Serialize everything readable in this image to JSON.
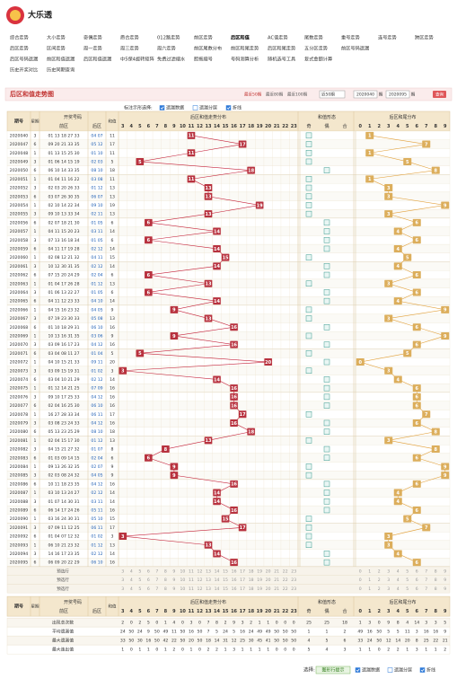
{
  "header": {
    "title": "大乐透"
  },
  "nav": [
    [
      "综合走势",
      "大小走势",
      "奇偶走势",
      "质合走势",
      "012路走势",
      "前区走势",
      "后区和值",
      "AC值走势",
      "尾数走势",
      "重号走势",
      "连号走势",
      "跨区走势"
    ],
    [
      "后区走势",
      "区间走势",
      "周一走势",
      "周三走势",
      "周六走势",
      "前区尾数分布",
      "前区和尾走势",
      "后区和尾走势",
      "五分区走势",
      "前区号码遗漏"
    ],
    [
      "后区号码遗漏",
      "前区和值遗漏",
      "后区和值遗漏",
      "中5保4旋转矩阵",
      "免费过滤缩水",
      "胆拖缩号",
      "号码测算分析",
      "随机选号工具",
      "复式金额计算"
    ],
    [
      "历史开奖对比",
      "历史同期查询"
    ]
  ],
  "panel": {
    "title": "后区和值走势图",
    "recent": [
      "最近50期",
      "最近80期",
      "最近100期"
    ],
    "select": "近50期",
    "from": "2020040",
    "to": "2020095",
    "unit": "期",
    "query": "查询"
  },
  "options": {
    "label": "标注示形选择:",
    "items": [
      {
        "text": "遗漏数据",
        "checked": true
      },
      {
        "text": "遗漏分层",
        "checked": false
      },
      {
        "text": "折线",
        "checked": true
      }
    ]
  },
  "table": {
    "headers": {
      "issue": "期号",
      "week": "星期",
      "draw": "开奖号码",
      "front": "前区",
      "back": "后区",
      "sum": "和值",
      "sum_dist": "后区和值走势分布",
      "shape": "和值形态",
      "tail_dist": "后区和尾分布"
    },
    "sum_columns": [
      3,
      4,
      5,
      6,
      7,
      8,
      9,
      10,
      11,
      12,
      13,
      14,
      15,
      16,
      17,
      18,
      19,
      20,
      21,
      22,
      23
    ],
    "shape_columns": [
      "奇",
      "偶",
      "合"
    ],
    "tail_columns": [
      0,
      1,
      2,
      3,
      4,
      5,
      6,
      7,
      8,
      9
    ],
    "rows": [
      [
        "2020040",
        3,
        "01 13 18 27 33",
        "04 07",
        11,
        1
      ],
      [
        "2020047",
        6,
        "09 20 21 33 35",
        "05 12",
        17,
        7
      ],
      [
        "2020048",
        1,
        "01 13 15 25 30",
        "01 10",
        11,
        1
      ],
      [
        "2020049",
        3,
        "01 06 14 15 19",
        "02 03",
        5,
        5
      ],
      [
        "2020050",
        6,
        "06 10 14 33 35",
        "08 10",
        18,
        8
      ],
      [
        "2020051",
        1,
        "01 04 11 16 22",
        "03 08",
        11,
        1
      ],
      [
        "2020052",
        3,
        "02 03 20 26 33",
        "01 12",
        13,
        3
      ],
      [
        "2020053",
        6,
        "03 07 26 30 35",
        "06 07",
        13,
        3
      ],
      [
        "2020054",
        1,
        "02 10 14 22 34",
        "09 10",
        19,
        9
      ],
      [
        "2020055",
        3,
        "09 10 13 33 34",
        "02 11",
        13,
        3
      ],
      [
        "2020056",
        6,
        "02 07 18 21 30",
        "01 05",
        6,
        6
      ],
      [
        "2020057",
        1,
        "04 11 15 20 23",
        "03 11",
        14,
        4
      ],
      [
        "2020058",
        3,
        "07 13 16 18 34",
        "01 05",
        6,
        6
      ],
      [
        "2020059",
        6,
        "04 11 17 19 28",
        "02 12",
        14,
        4
      ],
      [
        "2020060",
        1,
        "02 08 12 21 32",
        "04 11",
        15,
        5
      ],
      [
        "2020061",
        3,
        "10 12 30 31 35",
        "02 12",
        14,
        4
      ],
      [
        "2020062",
        6,
        "07 15 20 24 29",
        "02 04",
        6,
        6
      ],
      [
        "2020063",
        1,
        "01 04 17 26 28",
        "01 12",
        13,
        3
      ],
      [
        "2020064",
        3,
        "01 06 13 22 27",
        "01 05",
        6,
        6
      ],
      [
        "2020065",
        6,
        "04 11 12 23 33",
        "04 10",
        14,
        4
      ],
      [
        "2020066",
        1,
        "04 15 16 23 32",
        "04 05",
        9,
        9
      ],
      [
        "2020067",
        3,
        "07 19 23 30 33",
        "05 08",
        13,
        3
      ],
      [
        "2020068",
        6,
        "01 10 18 29 31",
        "06 10",
        16,
        6
      ],
      [
        "2020069",
        1,
        "10 13 16 31 35",
        "03 06",
        9,
        9
      ],
      [
        "2020070",
        3,
        "03 09 16 17 23",
        "04 12",
        16,
        6
      ],
      [
        "2020071",
        6,
        "03 04 08 11 27",
        "01 04",
        5,
        5
      ],
      [
        "2020072",
        1,
        "04 10 15 21 33",
        "09 11",
        20,
        0
      ],
      [
        "2020073",
        3,
        "03 09 15 19 31",
        "01 02",
        3,
        3
      ],
      [
        "2020074",
        6,
        "03 04 10 21 29",
        "02 12",
        14,
        4
      ],
      [
        "2020075",
        1,
        "01 12 14 21 25",
        "07 09",
        16,
        6
      ],
      [
        "2020076",
        3,
        "09 10 17 25 33",
        "04 12",
        16,
        6
      ],
      [
        "2020077",
        6,
        "02 04 16 25 30",
        "06 10",
        16,
        6
      ],
      [
        "2020078",
        1,
        "16 27 28 33 34",
        "06 11",
        17,
        7
      ],
      [
        "2020079",
        3,
        "03 08 23 24 33",
        "04 12",
        16,
        6
      ],
      [
        "2020080",
        6,
        "05 13 23 25 29",
        "08 10",
        18,
        8
      ],
      [
        "2020081",
        1,
        "02 04 15 17 30",
        "01 12",
        13,
        3
      ],
      [
        "2020082",
        3,
        "04 15 21 27 32",
        "01 07",
        8,
        8
      ],
      [
        "2020083",
        6,
        "01 03 09 14 15",
        "02 04",
        6,
        6
      ],
      [
        "2020084",
        1,
        "09 13 26 32 35",
        "02 07",
        9,
        9
      ],
      [
        "2020085",
        3,
        "02 03 08 24 32",
        "04 05",
        9,
        9
      ],
      [
        "2020086",
        6,
        "10 11 18 23 35",
        "04 12",
        16,
        6
      ],
      [
        "2020087",
        1,
        "03 10 13 24 27",
        "02 12",
        14,
        4
      ],
      [
        "2020088",
        3,
        "01 07 14 30 31",
        "03 11",
        14,
        4
      ],
      [
        "2020089",
        6,
        "06 14 17 24 26",
        "05 11",
        16,
        6
      ],
      [
        "2020090",
        1,
        "03 16 24 30 31",
        "05 10",
        15,
        5
      ],
      [
        "2020091",
        3,
        "07 09 11 12 25",
        "06 11",
        17,
        7
      ],
      [
        "2020092",
        6,
        "01 04 07 12 32",
        "01 02",
        3,
        3
      ],
      [
        "2020093",
        1,
        "06 10 21 23 32",
        "01 12",
        13,
        3
      ],
      [
        "2020094",
        3,
        "14 16 17 23 35",
        "02 12",
        14,
        4
      ],
      [
        "2020095",
        6,
        "06 09 20 22 29",
        "06 10",
        16,
        6
      ]
    ],
    "preselect_label": "预选行",
    "stats": [
      {
        "label": "出现总次数",
        "sums": [
          2,
          0,
          2,
          5,
          0,
          1,
          4,
          0,
          3,
          0,
          7,
          8,
          2,
          9,
          3,
          2,
          1,
          1,
          0,
          0,
          0
        ],
        "shape": [
          25,
          25,
          18
        ],
        "tails": [
          1,
          3,
          0,
          9,
          8,
          4,
          14,
          3,
          3,
          5
        ]
      },
      {
        "label": "平均遗漏值",
        "sums": [
          24,
          50,
          24,
          9,
          50,
          49,
          11,
          50,
          16,
          50,
          7,
          5,
          24,
          5,
          16,
          24,
          49,
          49,
          50,
          50,
          50
        ],
        "shape": [
          1,
          1,
          2
        ],
        "tails": [
          49,
          16,
          50,
          5,
          5,
          11,
          3,
          16,
          16,
          9
        ]
      },
      {
        "label": "最大遗漏值",
        "sums": [
          33,
          50,
          30,
          16,
          50,
          42,
          22,
          50,
          20,
          50,
          18,
          14,
          31,
          12,
          25,
          30,
          45,
          41,
          50,
          50,
          50
        ],
        "shape": [
          4,
          5,
          6
        ],
        "tails": [
          33,
          24,
          50,
          12,
          14,
          20,
          8,
          25,
          22,
          21
        ]
      },
      {
        "label": "最大连出值",
        "sums": [
          1,
          0,
          1,
          1,
          0,
          1,
          2,
          0,
          1,
          0,
          2,
          2,
          1,
          3,
          1,
          1,
          1,
          1,
          0,
          0,
          0
        ],
        "shape": [
          5,
          4,
          3
        ],
        "tails": [
          1,
          1,
          0,
          2,
          2,
          1,
          3,
          1,
          1,
          2
        ]
      }
    ]
  },
  "footer": {
    "label": "选择:",
    "button": "图形行提示",
    "items": [
      {
        "text": "遗漏数据",
        "checked": true
      },
      {
        "text": "遗漏分层",
        "checked": false
      },
      {
        "text": "折线",
        "checked": true
      }
    ]
  }
}
